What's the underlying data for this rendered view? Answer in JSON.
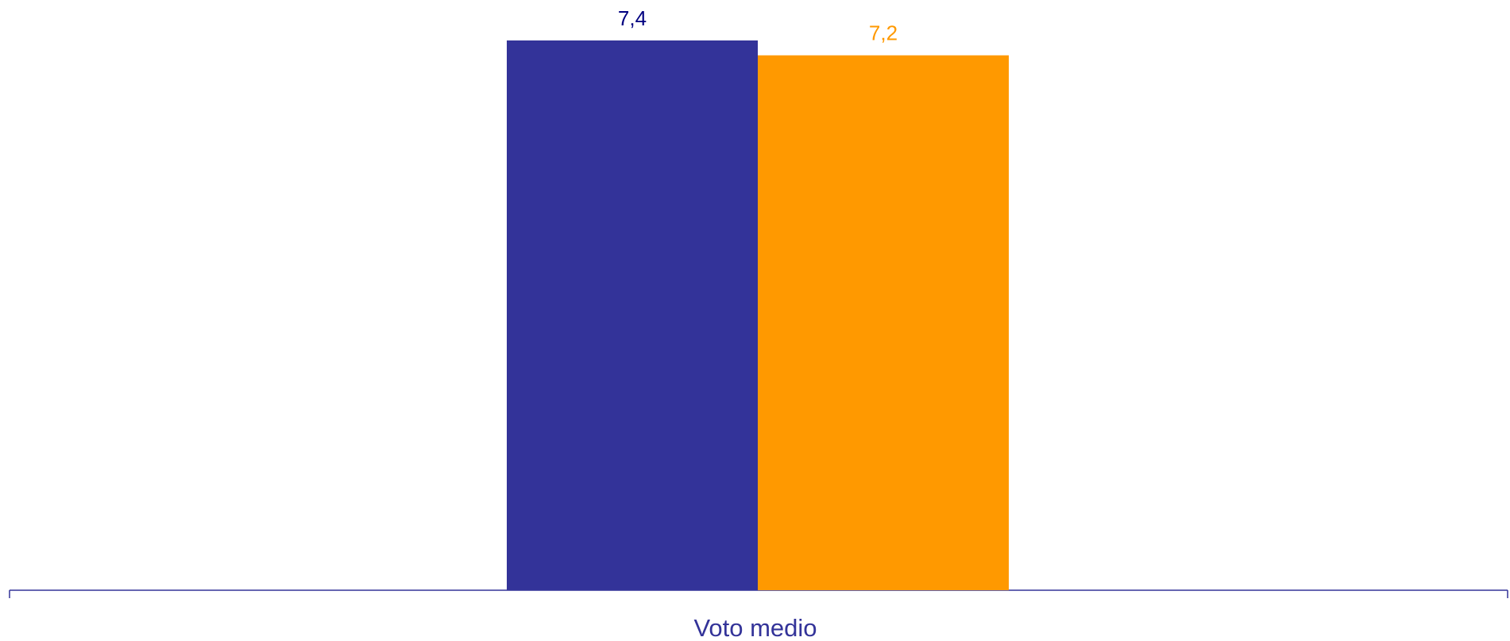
{
  "chart_data": {
    "type": "bar",
    "categories": [
      "Voto medio"
    ],
    "series": [
      {
        "values": [
          7.4
        ],
        "color": "#333399",
        "label_color": "#000080"
      },
      {
        "values": [
          7.2
        ],
        "color": "#FF9900",
        "label_color": "#FF9900"
      }
    ],
    "value_labels": [
      "7,4",
      "7,2"
    ],
    "title": "",
    "xlabel": "",
    "ylabel": "",
    "ylim": [
      0,
      8
    ],
    "grid": false,
    "legend": "none",
    "axis_color": "#333399",
    "category_label_color": "#333399"
  }
}
